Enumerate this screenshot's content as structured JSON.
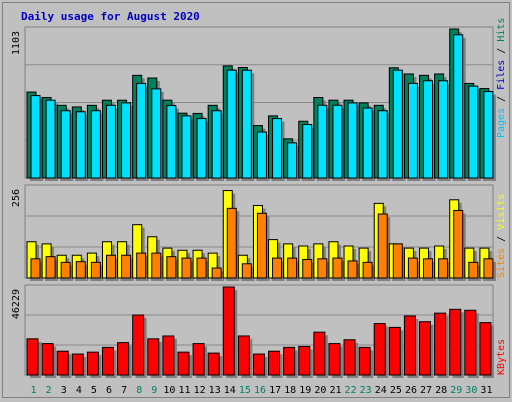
{
  "title": "Daily usage for August 2020",
  "colors": {
    "hits": "#00805c",
    "files": "#00e0ff",
    "pages": "#00c0ff",
    "visits": "#ffff00",
    "sites": "#ff8000",
    "kbytes": "#ff0000",
    "title": "#0000c0",
    "weekend_day": "#00805c"
  },
  "legend": {
    "top": [
      {
        "label": "Hits",
        "color": "#00805c"
      },
      {
        "label": "Files",
        "color": "#0000c0"
      },
      {
        "label": "Pages",
        "color": "#00c0ff"
      }
    ],
    "middle": [
      {
        "label": "Visits",
        "color": "#ffff00"
      },
      {
        "label": "Sites",
        "color": "#ff8000"
      }
    ],
    "bottom": [
      {
        "label": "KBytes",
        "color": "#ff0000"
      }
    ]
  },
  "chart_data": [
    {
      "type": "bar",
      "categories": [
        "1",
        "2",
        "3",
        "4",
        "5",
        "6",
        "7",
        "8",
        "9",
        "10",
        "11",
        "12",
        "13",
        "14",
        "15",
        "16",
        "17",
        "18",
        "19",
        "20",
        "21",
        "22",
        "23",
        "24",
        "25",
        "26",
        "27",
        "28",
        "29",
        "30",
        "31"
      ],
      "weekend_days": [
        "1",
        "2",
        "8",
        "9",
        "15",
        "16",
        "22",
        "23",
        "29",
        "30"
      ],
      "ylabel": "1103",
      "ylim": [
        0,
        1103
      ],
      "series": [
        {
          "name": "Hits",
          "values": [
            636,
            596,
            538,
            526,
            538,
            576,
            576,
            760,
            740,
            576,
            480,
            478,
            538,
            830,
            818,
            388,
            460,
            290,
            420,
            596,
            576,
            576,
            556,
            538,
            816,
            770,
            760,
            770,
            1103,
            700,
            662
          ]
        },
        {
          "name": "Files",
          "values": [
            610,
            576,
            498,
            490,
            498,
            538,
            556,
            700,
            660,
            536,
            460,
            440,
            498,
            798,
            798,
            340,
            440,
            260,
            396,
            538,
            538,
            556,
            518,
            498,
            798,
            700,
            720,
            720,
            1060,
            680,
            640
          ]
        },
        {
          "name": "Pages",
          "values": [
            0,
            0,
            0,
            0,
            0,
            0,
            0,
            0,
            0,
            0,
            0,
            0,
            0,
            0,
            0,
            0,
            0,
            0,
            0,
            0,
            0,
            0,
            0,
            0,
            0,
            0,
            0,
            0,
            0,
            0,
            0
          ]
        }
      ]
    },
    {
      "type": "bar",
      "categories": [
        "1",
        "2",
        "3",
        "4",
        "5",
        "6",
        "7",
        "8",
        "9",
        "10",
        "11",
        "12",
        "13",
        "14",
        "15",
        "16",
        "17",
        "18",
        "19",
        "20",
        "21",
        "22",
        "23",
        "24",
        "25",
        "26",
        "27",
        "28",
        "29",
        "30",
        "31"
      ],
      "ylabel": "256",
      "ylim": [
        0,
        256
      ],
      "series": [
        {
          "name": "Visits",
          "values": [
            102,
            96,
            64,
            64,
            70,
            102,
            102,
            150,
            116,
            84,
            78,
            78,
            70,
            246,
            64,
            204,
            108,
            96,
            90,
            96,
            102,
            90,
            84,
            210,
            96,
            84,
            84,
            90,
            220,
            84,
            84
          ]
        },
        {
          "name": "Sites",
          "values": [
            54,
            60,
            44,
            46,
            44,
            64,
            64,
            70,
            70,
            60,
            56,
            56,
            28,
            196,
            40,
            182,
            56,
            56,
            52,
            54,
            56,
            48,
            44,
            180,
            96,
            56,
            54,
            54,
            190,
            44,
            54
          ]
        }
      ]
    },
    {
      "type": "bar",
      "categories": [
        "1",
        "2",
        "3",
        "4",
        "5",
        "6",
        "7",
        "8",
        "9",
        "10",
        "11",
        "12",
        "13",
        "14",
        "15",
        "16",
        "17",
        "18",
        "19",
        "20",
        "21",
        "22",
        "23",
        "24",
        "25",
        "26",
        "27",
        "28",
        "29",
        "30",
        "31"
      ],
      "ylabel": "46229",
      "ylim": [
        0,
        46229
      ],
      "series": [
        {
          "name": "KBytes",
          "values": [
            19000,
            16500,
            12500,
            11000,
            12000,
            14500,
            17000,
            31500,
            19000,
            20500,
            12000,
            16500,
            11500,
            46229,
            20500,
            11000,
            12500,
            14500,
            15000,
            22500,
            16500,
            18500,
            14500,
            27000,
            25000,
            31000,
            28000,
            32500,
            34500,
            34000,
            27500
          ]
        }
      ]
    }
  ]
}
